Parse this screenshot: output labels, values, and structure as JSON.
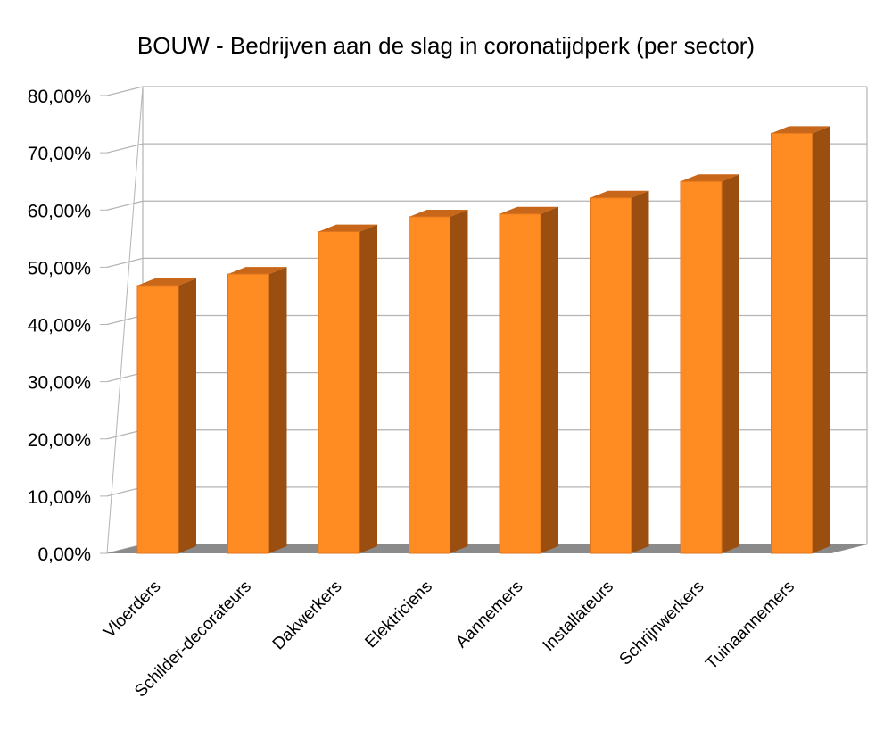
{
  "chart_data": {
    "type": "bar",
    "title": "BOUW - Bedrijven aan de slag in coronatijdperk (per sector)",
    "xlabel": "",
    "ylabel": "",
    "categories": [
      "Vloerders",
      "Schilder-decorateurs",
      "Dakwerkers",
      "Elektriciens",
      "Aannemers",
      "Installateurs",
      "Schrijnwerkers",
      "Tuinaannemers"
    ],
    "values": [
      0.468,
      0.488,
      0.562,
      0.588,
      0.593,
      0.621,
      0.65,
      0.734
    ],
    "ylim": [
      0,
      0.8
    ],
    "yticks": [
      0,
      0.1,
      0.2,
      0.3,
      0.4,
      0.5,
      0.6,
      0.7,
      0.8
    ],
    "ytick_labels": [
      "0,00%",
      "10,00%",
      "20,00%",
      "30,00%",
      "40,00%",
      "50,00%",
      "60,00%",
      "70,00%",
      "80,00%"
    ],
    "grid": true,
    "legend": "none",
    "style": "3d",
    "colors": {
      "bar_front": "#ff8c22",
      "bar_side": "#9a4f10",
      "bar_top": "#c8661a",
      "floor": "#8a8a8a",
      "grid": "#b3b3b3"
    }
  }
}
